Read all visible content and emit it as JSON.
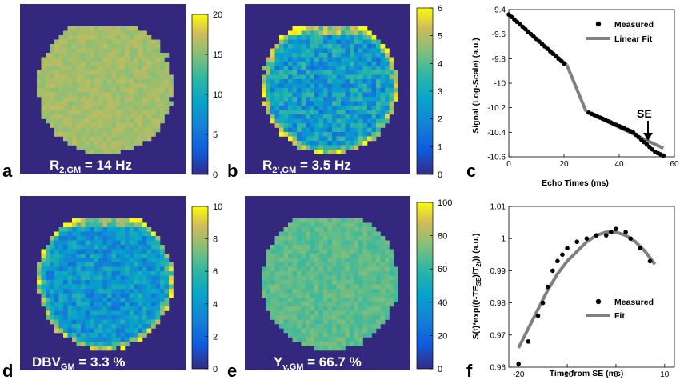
{
  "figure": {
    "panels": [
      {
        "id": "a",
        "label": "a",
        "overlay": {
          "main": "R",
          "sub": "2,GM",
          "rest": " = 14 Hz"
        },
        "colorbar": {
          "min": 0,
          "max": 20,
          "ticks": [
            "0",
            "5",
            "10",
            "15",
            "20"
          ]
        },
        "map_value": 16,
        "map_spread": 1.0,
        "edge_boost": 0
      },
      {
        "id": "b",
        "label": "b",
        "overlay": {
          "main": "R",
          "sub": "2’,GM",
          "rest": " = 3.5 Hz"
        },
        "colorbar": {
          "min": 0,
          "max": 6,
          "ticks": [
            "0",
            "1",
            "2",
            "3",
            "4",
            "5",
            "6"
          ]
        },
        "map_value": 2.6,
        "map_spread": 1.2,
        "edge_boost": 3.2
      },
      {
        "id": "d",
        "label": "d",
        "overlay": {
          "main": "DBV",
          "sub": "GM",
          "rest": " = 3.3 %"
        },
        "colorbar": {
          "min": 0,
          "max": 10,
          "ticks": [
            "0",
            "2",
            "4",
            "6",
            "8",
            "10"
          ]
        },
        "map_value": 4.0,
        "map_spread": 1.6,
        "edge_boost": 5.0
      },
      {
        "id": "e",
        "label": "e",
        "overlay": {
          "main": "Y",
          "sub": "v,GM",
          "rest": " = 66.7 %"
        },
        "colorbar": {
          "min": 0,
          "max": 100,
          "ticks": [
            "0",
            "20",
            "40",
            "60",
            "80",
            "100"
          ]
        },
        "map_value": 68,
        "map_spread": 6,
        "edge_boost": 0
      }
    ],
    "colors": {
      "background": "#34287e",
      "brain_mid": "#e7b93c",
      "line_gray": "#808080"
    }
  },
  "chart_data": [
    {
      "id": "c",
      "panel_label": "c",
      "type": "line",
      "xlabel": "Echo Times (ms)",
      "ylabel": "Signal (Log-Scale) (a.u.)",
      "xlim": [
        0,
        60
      ],
      "ylim": [
        -10.6,
        -9.4
      ],
      "xticks": [
        "0",
        "20",
        "40",
        "60"
      ],
      "xtick_values": [
        0,
        20,
        40,
        60
      ],
      "yticks": [
        "-9.4",
        "-9.6",
        "-9.8",
        "-10",
        "-10.2",
        "-10.4",
        "-10.6"
      ],
      "ytick_values": [
        -9.4,
        -9.6,
        -9.8,
        -10.0,
        -10.2,
        -10.4,
        -10.6
      ],
      "legend": {
        "measured": "Measured",
        "fit": "Linear Fit",
        "position": "top-right"
      },
      "annotation": {
        "text": "SE",
        "x": 48,
        "y": -10.46
      },
      "fit_segments": [
        {
          "x": [
            0,
            21
          ],
          "y": [
            -9.44,
            -9.85
          ]
        },
        {
          "x": [
            21,
            28
          ],
          "y": [
            -9.85,
            -10.23
          ]
        },
        {
          "x": [
            28,
            56
          ],
          "y": [
            -10.23,
            -10.53
          ]
        }
      ],
      "measured": {
        "x": [
          0,
          1,
          2,
          3,
          4,
          5,
          6,
          7,
          8,
          9,
          10,
          11,
          12,
          13,
          14,
          15,
          16,
          17,
          18,
          19,
          20,
          29,
          30,
          31,
          32,
          33,
          34,
          35,
          36,
          37,
          38,
          39,
          40,
          41,
          42,
          43,
          44,
          45,
          46,
          47,
          48,
          49,
          50,
          51,
          52,
          53,
          54,
          55,
          56
        ],
        "y": [
          -9.44,
          -9.46,
          -9.48,
          -9.5,
          -9.52,
          -9.54,
          -9.56,
          -9.58,
          -9.6,
          -9.62,
          -9.64,
          -9.66,
          -9.68,
          -9.7,
          -9.72,
          -9.74,
          -9.76,
          -9.78,
          -9.8,
          -9.82,
          -9.84,
          -10.24,
          -10.25,
          -10.26,
          -10.27,
          -10.28,
          -10.29,
          -10.3,
          -10.31,
          -10.32,
          -10.33,
          -10.34,
          -10.35,
          -10.36,
          -10.37,
          -10.38,
          -10.39,
          -10.4,
          -10.42,
          -10.44,
          -10.46,
          -10.48,
          -10.5,
          -10.52,
          -10.54,
          -10.56,
          -10.57,
          -10.58,
          -10.59
        ]
      }
    },
    {
      "id": "f",
      "panel_label": "f",
      "type": "scatter",
      "xlabel": "Time from SE (ms)",
      "ylabel": "S(t)*exp((t-TE_SE)/T_2t)) (a.u.)",
      "xlim": [
        -22,
        12
      ],
      "ylim": [
        0.96,
        1.01
      ],
      "xticks": [
        "-20",
        "-10",
        "0",
        "10"
      ],
      "xtick_values": [
        -20,
        -10,
        0,
        10
      ],
      "yticks": [
        "1.01",
        "1",
        "0.99",
        "0.98",
        "0.97",
        "0.96"
      ],
      "ytick_values": [
        1.01,
        1.0,
        0.99,
        0.98,
        0.97,
        0.96
      ],
      "legend": {
        "measured": "Measured",
        "fit": "Fit",
        "position": "bottom-right"
      },
      "measured": {
        "x": [
          -20,
          -18,
          -16,
          -15,
          -14,
          -13,
          -12,
          -11,
          -10,
          -8,
          -6,
          -4,
          -2,
          -1,
          0,
          2,
          3,
          5,
          7
        ],
        "y": [
          0.961,
          0.968,
          0.976,
          0.98,
          0.985,
          0.99,
          0.993,
          0.995,
          0.997,
          0.999,
          1.0,
          1.001,
          1.001,
          1.002,
          1.003,
          1.002,
          1.0,
          0.997,
          0.993
        ]
      },
      "fit": {
        "x": [
          -20,
          -18,
          -16,
          -14,
          -12,
          -10,
          -8,
          -6,
          -4,
          -2,
          0,
          2,
          4,
          6,
          8
        ],
        "y": [
          0.966,
          0.972,
          0.978,
          0.984,
          0.989,
          0.993,
          0.996,
          0.999,
          1.001,
          1.002,
          1.002,
          1.001,
          0.999,
          0.996,
          0.992
        ]
      }
    }
  ]
}
